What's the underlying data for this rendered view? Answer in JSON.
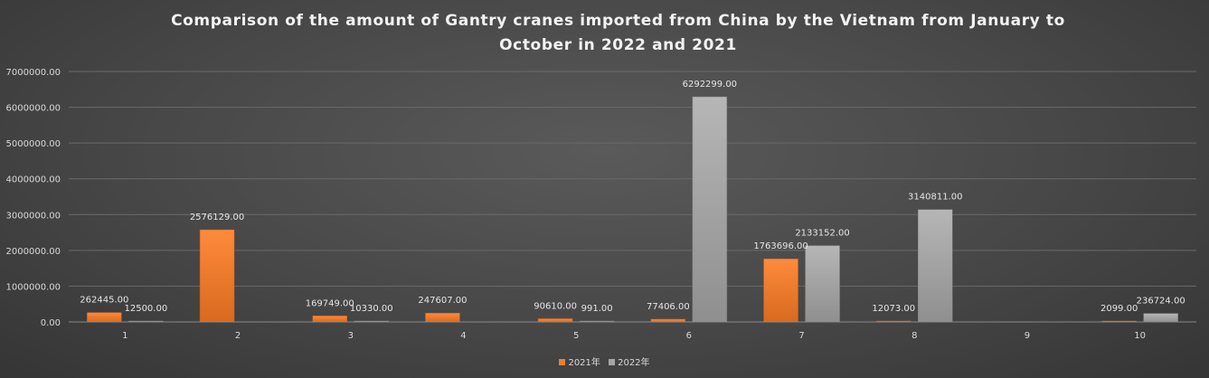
{
  "chart_data": {
    "type": "bar",
    "title_line1": "Comparison of the amount of Gantry cranes imported from China by the Vietnam from January to",
    "title_line2": "October in 2022 and 2021",
    "categories": [
      "1",
      "2",
      "3",
      "4",
      "5",
      "6",
      "7",
      "8",
      "9",
      "10"
    ],
    "series": [
      {
        "name": "2021年",
        "color": "#ed7d31",
        "values": [
          262445,
          2576129,
          169749,
          247607,
          90610,
          77406,
          1763696,
          12073,
          null,
          2099
        ],
        "labels": [
          "262445.00",
          "2576129.00",
          "169749.00",
          "247607.00",
          "90610.00",
          "77406.00",
          "1763696.00",
          "12073.00",
          "",
          "2099.00"
        ]
      },
      {
        "name": "2022年",
        "color": "#a5a5a5",
        "values": [
          12500,
          null,
          10330,
          null,
          991,
          6292299,
          2133152,
          3140811,
          null,
          236724
        ],
        "labels": [
          "12500.00",
          "",
          "10330.00",
          "",
          "991.00",
          "6292299.00",
          "2133152.00",
          "3140811.00",
          "",
          "236724.00"
        ]
      }
    ],
    "yticks": [
      0,
      1000000,
      2000000,
      3000000,
      4000000,
      5000000,
      6000000,
      7000000
    ],
    "ytick_labels": [
      "0.00",
      "1000000.00",
      "2000000.00",
      "3000000.00",
      "4000000.00",
      "5000000.00",
      "6000000.00",
      "7000000.00"
    ],
    "ylim": [
      0,
      7000000
    ],
    "xlabel": "",
    "ylabel": "",
    "grid": true,
    "legend_position": "bottom"
  }
}
